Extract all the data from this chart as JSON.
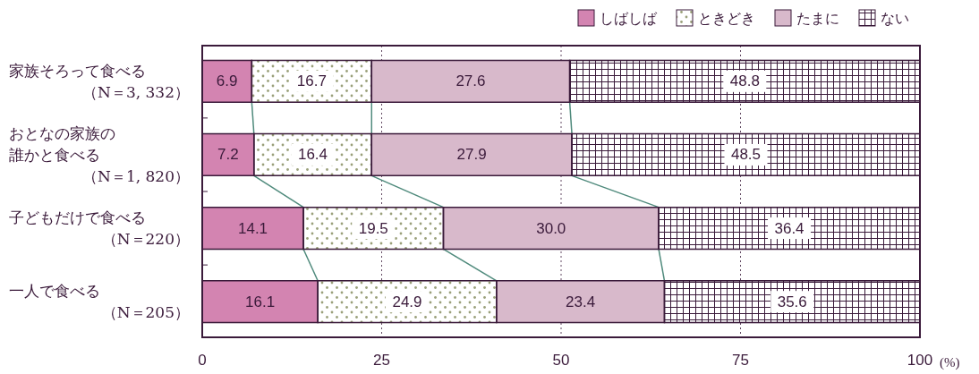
{
  "chart_data": {
    "type": "bar",
    "orientation": "horizontal",
    "stacked": true,
    "categories": [
      "家族そろって食べる（N＝3, 332）",
      "おとなの家族の誰かと食べる（N＝1, 820）",
      "子どもだけで食べる（N＝220）",
      "一人で食べる（N＝205）"
    ],
    "series": [
      {
        "name": "しばしば",
        "color": "#d384b1",
        "values": [
          6.9,
          7.2,
          14.1,
          16.1
        ],
        "value_labels": [
          "6.9",
          "7.2",
          "14.1",
          "16.1"
        ]
      },
      {
        "name": "ときどき",
        "color": "#9aa07a",
        "values": [
          16.7,
          16.4,
          19.5,
          24.9
        ],
        "value_labels": [
          "16.7",
          "16.4",
          "19.5",
          "24.9"
        ]
      },
      {
        "name": "たまに",
        "color": "#d8b9cb",
        "values": [
          27.6,
          27.9,
          30.0,
          23.4
        ],
        "value_labels": [
          "27.6",
          "27.9",
          "30.0",
          "23.4"
        ]
      },
      {
        "name": "ない",
        "color": "#3a1a3a",
        "values": [
          48.8,
          48.5,
          36.4,
          35.6
        ],
        "value_labels": [
          "48.8",
          "48.5",
          "36.4",
          "35.6"
        ]
      }
    ],
    "xlim": [
      0,
      100
    ],
    "xticks": [
      0,
      25,
      50,
      75,
      100
    ],
    "xlabel": "(%)",
    "grid": "x",
    "legend": "top right"
  }
}
